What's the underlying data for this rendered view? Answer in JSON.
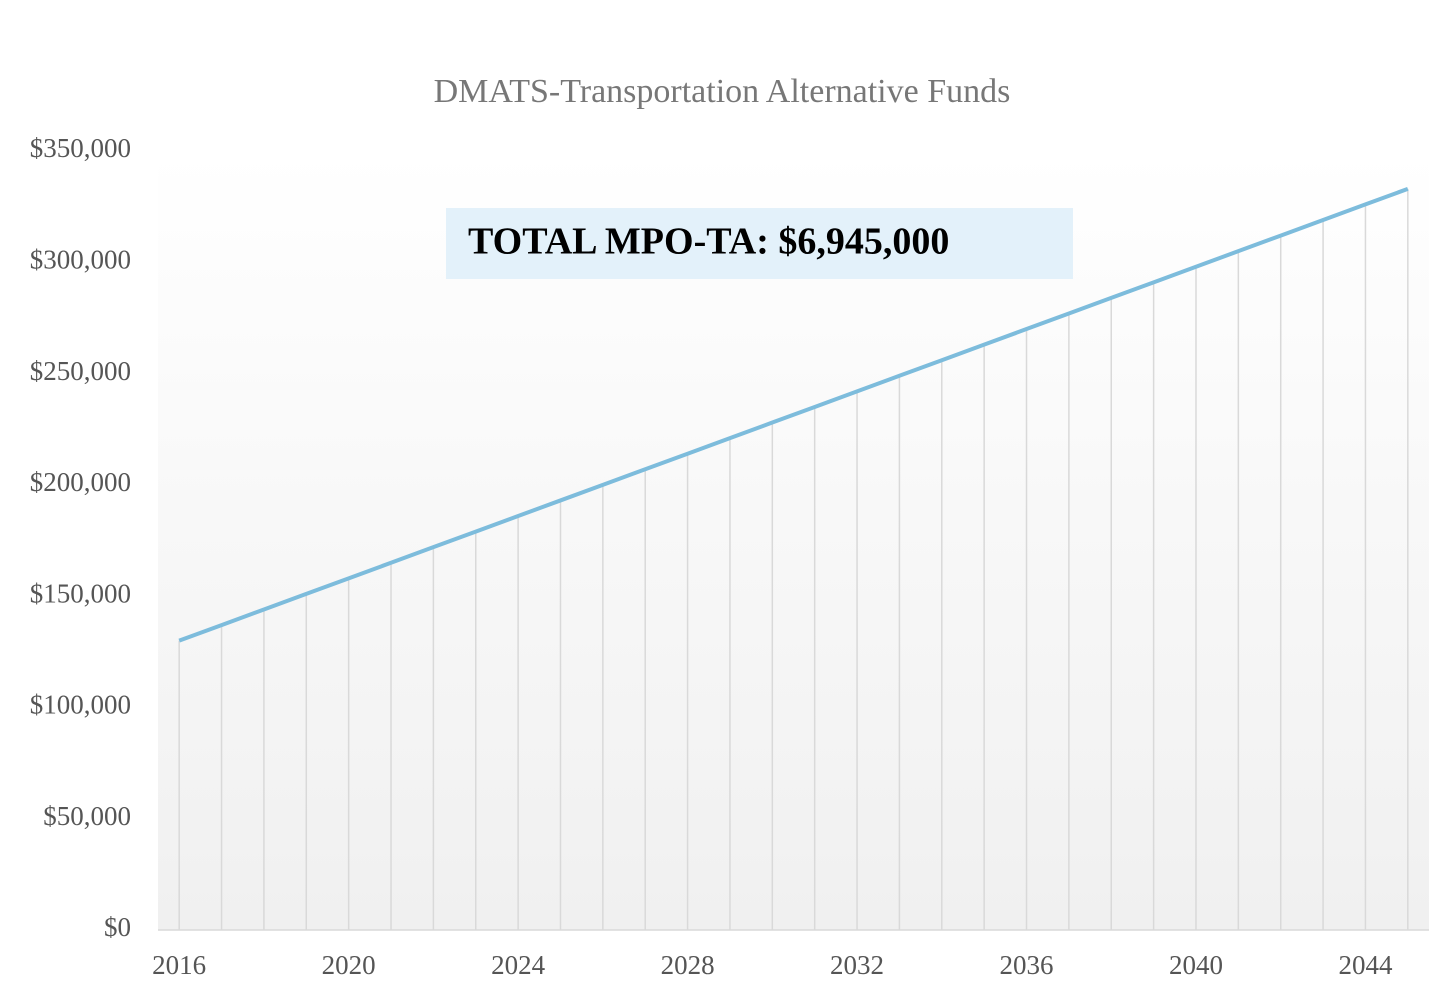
{
  "chart_data": {
    "type": "line",
    "title": "DMATS-Transportation Alternative Funds",
    "annotation": "TOTAL MPO-TA: $6,945,000",
    "x": [
      2016,
      2017,
      2018,
      2019,
      2020,
      2021,
      2022,
      2023,
      2024,
      2025,
      2026,
      2027,
      2028,
      2029,
      2030,
      2031,
      2032,
      2033,
      2034,
      2035,
      2036,
      2037,
      2038,
      2039,
      2040,
      2041,
      2042,
      2043,
      2044,
      2045
    ],
    "series": [
      {
        "color": "#7dbcdc",
        "values": [
          130000,
          137000,
          144000,
          151000,
          158000,
          165000,
          172000,
          179000,
          186000,
          193000,
          200000,
          207000,
          214000,
          221000,
          228000,
          235000,
          242000,
          249000,
          256000,
          263000,
          270000,
          277000,
          284000,
          291000,
          298000,
          305000,
          312000,
          319000,
          326000,
          333000
        ]
      }
    ],
    "xlim": [
      2015.5,
      2045.5
    ],
    "xticks": [
      2016,
      2020,
      2024,
      2028,
      2032,
      2036,
      2040,
      2044
    ],
    "ylim": [
      0,
      350000
    ],
    "yticks": [
      {
        "value": 0,
        "label": "$0"
      },
      {
        "value": 50000,
        "label": "$50,000"
      },
      {
        "value": 100000,
        "label": "$100,000"
      },
      {
        "value": 150000,
        "label": "$150,000"
      },
      {
        "value": 200000,
        "label": "$200,000"
      },
      {
        "value": 250000,
        "label": "$250,000"
      },
      {
        "value": 300000,
        "label": "$300,000"
      },
      {
        "value": 350000,
        "label": "$350,000"
      }
    ],
    "drop_lines": true
  }
}
